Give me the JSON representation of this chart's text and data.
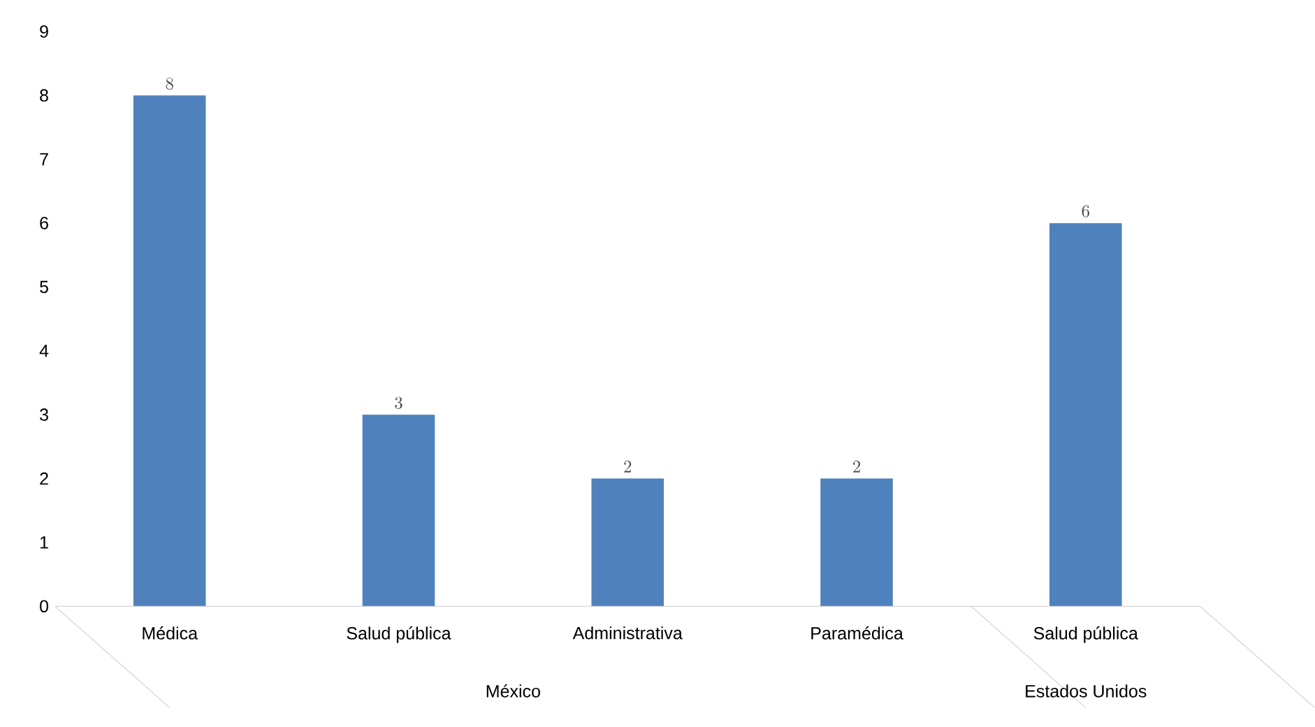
{
  "chart_data": {
    "type": "bar",
    "categories": [
      "Médica",
      "Salud pública",
      "Administrativa",
      "Paramédica",
      "Salud pública"
    ],
    "values": [
      8,
      3,
      2,
      2,
      6
    ],
    "color": "#4f81bd",
    "ylim": [
      0,
      9
    ],
    "yticks": [
      0,
      1,
      2,
      3,
      4,
      5,
      6,
      7,
      8,
      9
    ],
    "data_labels": true,
    "annotations": [
      "México",
      "Estados Unidos"
    ]
  }
}
